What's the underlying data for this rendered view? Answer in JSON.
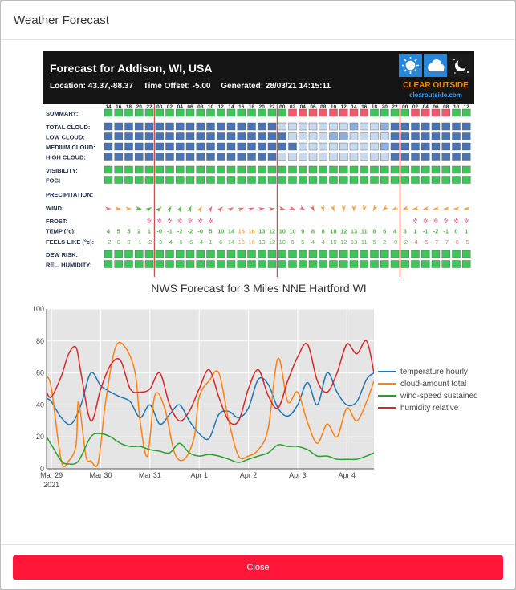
{
  "modal": {
    "title": "Weather Forecast",
    "close_label": "Close"
  },
  "clear_outside": {
    "title": "Forecast for Addison, WI, USA",
    "location": "Location: 43.37,-88.37",
    "offset": "Time Offset: -5.00",
    "generated": "Generated: 28/03/21 14:15:11",
    "brand": "CLEAR OUTSIDE",
    "url": "clearoutside.com",
    "hours": [
      "14",
      "16",
      "18",
      "20",
      "22",
      "00",
      "02",
      "04",
      "06",
      "08",
      "10",
      "12",
      "14",
      "16",
      "18",
      "20",
      "22",
      "00",
      "02",
      "04",
      "06",
      "08",
      "10",
      "12",
      "14",
      "16",
      "18",
      "20",
      "22",
      "00",
      "02",
      "04",
      "06",
      "08",
      "10",
      "12"
    ],
    "day_boundary_columns": [
      5,
      17,
      29
    ],
    "row_labels": [
      "SUMMARY:",
      "TOTAL CLOUD:",
      "LOW CLOUD:",
      "MEDIUM CLOUD:",
      "HIGH CLOUD:",
      "VISIBILITY:",
      "FOG:",
      "PRECIPITATION:",
      "WIND:",
      "FROST:",
      "TEMP (°c):",
      "FEELS LIKE (°c):",
      "DEW RISK:",
      "REL. HUMIDITY:"
    ],
    "summary_colors": "GGGGGGGGGGGGGGGGGGRRRRRRRRGGGGRRRRGG",
    "total_cloud": "DDDDDDDDDDDDDDDDDLLLLLLLMLLMDDDDDDDD",
    "low_cloud": "DDDDDDDDDDDDDDDDDDLLLLMMLLLLDDDDDDDD",
    "medium_cloud": "DDDDDDDDDDDDDDDDDDDLLLLLLLLMDDDDDDDD",
    "high_cloud": "DDDDDDDDDDDDDDDDDLLLLLLLLLLLDDDDDDDD",
    "wind_arrow_rotations": [
      0,
      0,
      0,
      10,
      -30,
      -45,
      -60,
      -60,
      -70,
      -60,
      -60,
      -45,
      -30,
      -20,
      -20,
      -10,
      -10,
      10,
      20,
      30,
      60,
      70,
      70,
      90,
      90,
      100,
      120,
      140,
      150,
      160,
      170,
      170,
      170,
      180,
      180,
      180
    ],
    "wind_arrow_colors": [
      "#f06f6f",
      "#f7a24a",
      "#f7a24a",
      "#57b84a",
      "#57b84a",
      "#57b84a",
      "#57b84a",
      "#57b84a",
      "#57b84a",
      "#f7a24a",
      "#f06f6f",
      "#f06f6f",
      "#f06f6f",
      "#f06f6f",
      "#f06f6f",
      "#f06f6f",
      "#f06f6f",
      "#f06f6f",
      "#f06f6f",
      "#f06f6f",
      "#f06f6f",
      "#f7a24a",
      "#f7a24a",
      "#f7a24a",
      "#f7a24a",
      "#f7a24a",
      "#f7a24a",
      "#f7a24a",
      "#f7a24a",
      "#f7a24a",
      "#f7a24a",
      "#f7a24a",
      "#f7a24a",
      "#f7a24a",
      "#f7a24a",
      "#f7a24a"
    ],
    "frost_columns": [
      4,
      5,
      6,
      7,
      8,
      9,
      10,
      30,
      31,
      32,
      33,
      34,
      35
    ],
    "temp": [
      "4",
      "5",
      "5",
      "2",
      "1",
      "-0",
      "-1",
      "-2",
      "-2",
      "-0",
      "5",
      "10",
      "14",
      "16",
      "16",
      "13",
      "12",
      "10",
      "10",
      "9",
      "8",
      "8",
      "10",
      "12",
      "13",
      "11",
      "8",
      "6",
      "4",
      "3",
      "1",
      "-1",
      "-2",
      "-1",
      "0",
      "1"
    ],
    "feels_like": [
      "-2",
      "0",
      "0",
      "-1",
      "-2",
      "-3",
      "-4",
      "-6",
      "-6",
      "-4",
      "1",
      "6",
      "14",
      "16",
      "16",
      "13",
      "12",
      "10",
      "6",
      "5",
      "4",
      "4",
      "10",
      "12",
      "13",
      "11",
      "5",
      "2",
      "-0",
      "-2",
      "-4",
      "-5",
      "-7",
      "-7",
      "-6",
      "-5"
    ],
    "temp_colors": [
      "#57b84a",
      "#57b84a",
      "#57b84a",
      "#57b84a",
      "#57b84a",
      "#57b84a",
      "#57b84a",
      "#57b84a",
      "#57b84a",
      "#57b84a",
      "#57b84a",
      "#57b84a",
      "#57b84a",
      "#f7a24a",
      "#f7a24a",
      "#57b84a",
      "#57b84a",
      "#57b84a",
      "#57b84a",
      "#57b84a",
      "#57b84a",
      "#57b84a",
      "#57b84a",
      "#57b84a",
      "#57b84a",
      "#57b84a",
      "#57b84a",
      "#57b84a",
      "#57b84a",
      "#57b84a",
      "#57b84a",
      "#57b84a",
      "#57b84a",
      "#57b84a",
      "#57b84a",
      "#57b84a"
    ],
    "feels_colors": [
      "#57b84a",
      "#57b84a",
      "#57b84a",
      "#57b84a",
      "#57b84a",
      "#57b84a",
      "#57b84a",
      "#57b84a",
      "#57b84a",
      "#57b84a",
      "#57b84a",
      "#57b84a",
      "#57b84a",
      "#f7a24a",
      "#f7a24a",
      "#57b84a",
      "#57b84a",
      "#57b84a",
      "#57b84a",
      "#57b84a",
      "#57b84a",
      "#57b84a",
      "#57b84a",
      "#57b84a",
      "#57b84a",
      "#57b84a",
      "#57b84a",
      "#57b84a",
      "#57b84a",
      "#57b84a",
      "#f06f6f",
      "#f06f6f",
      "#f06f6f",
      "#f06f6f",
      "#f06f6f",
      "#f06f6f"
    ],
    "colors": {
      "green": "#3fc45a",
      "red": "#f2586c",
      "dark_blue": "#4a74b4",
      "light_blue": "#c7d9ee",
      "mid_blue": "#8eaedb",
      "day_line": "#d23a3a",
      "header_bg": "#151515"
    }
  },
  "chart_data": {
    "type": "line",
    "title": "NWS Forecast for 3 Miles NNE Hartford WI",
    "ylim": [
      0,
      100
    ],
    "yticks": [
      0,
      20,
      40,
      60,
      80,
      100
    ],
    "xlim": [
      -0.1,
      6.55
    ],
    "xticks": [
      {
        "pos": 0,
        "label": "Mar 29",
        "sublabel": "2021"
      },
      {
        "pos": 1,
        "label": "Mar 30"
      },
      {
        "pos": 2,
        "label": "Mar 31"
      },
      {
        "pos": 3,
        "label": "Apr 1"
      },
      {
        "pos": 4,
        "label": "Apr 2"
      },
      {
        "pos": 5,
        "label": "Apr 3"
      },
      {
        "pos": 6,
        "label": "Apr 4"
      }
    ],
    "series": [
      {
        "name": "temperature hourly",
        "color": "#1f77b4",
        "x": [
          -0.1,
          0,
          0.2,
          0.4,
          0.6,
          0.8,
          1.0,
          1.2,
          1.4,
          1.6,
          1.8,
          2.0,
          2.2,
          2.4,
          2.6,
          2.8,
          3.0,
          3.2,
          3.4,
          3.6,
          3.8,
          4.0,
          4.2,
          4.4,
          4.6,
          4.8,
          5.0,
          5.2,
          5.4,
          5.6,
          5.8,
          6.0,
          6.2,
          6.4,
          6.55
        ],
        "values": [
          44,
          42,
          32,
          28,
          40,
          60,
          52,
          48,
          45,
          42,
          32,
          40,
          28,
          34,
          40,
          30,
          22,
          19,
          34,
          36,
          32,
          38,
          56,
          53,
          38,
          33,
          40,
          54,
          40,
          60,
          48,
          40,
          42,
          56,
          60
        ]
      },
      {
        "name": "cloud-amount total",
        "color": "#ff7f0e",
        "x": [
          -0.1,
          0,
          0.2,
          0.35,
          0.5,
          0.55,
          0.7,
          0.8,
          0.95,
          1.1,
          1.3,
          1.5,
          1.7,
          1.8,
          1.95,
          2.1,
          2.3,
          2.5,
          2.7,
          2.9,
          3.0,
          3.2,
          3.4,
          3.6,
          3.8,
          4.0,
          4.2,
          4.4,
          4.6,
          4.8,
          5.0,
          5.2,
          5.4,
          5.6,
          5.8,
          6.0,
          6.2,
          6.4,
          6.55
        ],
        "values": [
          58,
          50,
          5,
          5,
          15,
          42,
          8,
          5,
          4,
          42,
          76,
          76,
          60,
          30,
          8,
          46,
          38,
          10,
          6,
          20,
          45,
          55,
          60,
          30,
          8,
          8,
          12,
          25,
          69,
          42,
          48,
          29,
          16,
          28,
          20,
          38,
          30,
          42,
          55
        ]
      },
      {
        "name": "wind-speed sustained",
        "color": "#2ca02c",
        "x": [
          -0.1,
          0,
          0.2,
          0.35,
          0.55,
          0.8,
          1.0,
          1.2,
          1.4,
          1.6,
          1.8,
          2.0,
          2.2,
          2.4,
          2.6,
          2.8,
          3.0,
          3.2,
          3.4,
          3.6,
          3.8,
          4.0,
          4.2,
          4.4,
          4.6,
          4.8,
          5.0,
          5.2,
          5.4,
          5.6,
          5.8,
          6.0,
          6.2,
          6.4,
          6.55
        ],
        "values": [
          20,
          15,
          5,
          3,
          5,
          20,
          22,
          20,
          16,
          14,
          14,
          12,
          11,
          10,
          16,
          10,
          8,
          9,
          8,
          6,
          4,
          6,
          8,
          10,
          15,
          14,
          14,
          12,
          8,
          8,
          6,
          6,
          6,
          8,
          10
        ]
      },
      {
        "name": "humidity relative",
        "color": "#d62728",
        "x": [
          -0.1,
          0,
          0.2,
          0.35,
          0.5,
          0.6,
          0.8,
          1.0,
          1.2,
          1.4,
          1.6,
          1.8,
          2.0,
          2.2,
          2.4,
          2.6,
          2.8,
          3.0,
          3.2,
          3.4,
          3.6,
          3.8,
          4.0,
          4.2,
          4.4,
          4.6,
          4.8,
          5.0,
          5.2,
          5.4,
          5.6,
          5.8,
          6.0,
          6.2,
          6.4,
          6.55
        ],
        "values": [
          48,
          45,
          58,
          72,
          76,
          60,
          30,
          50,
          65,
          68,
          50,
          48,
          50,
          60,
          40,
          30,
          36,
          50,
          62,
          45,
          30,
          30,
          50,
          62,
          46,
          38,
          55,
          70,
          78,
          55,
          48,
          60,
          78,
          72,
          80,
          60
        ]
      }
    ],
    "legend_position": "right",
    "grid": true,
    "plot_bg": "#e5e5e5"
  }
}
